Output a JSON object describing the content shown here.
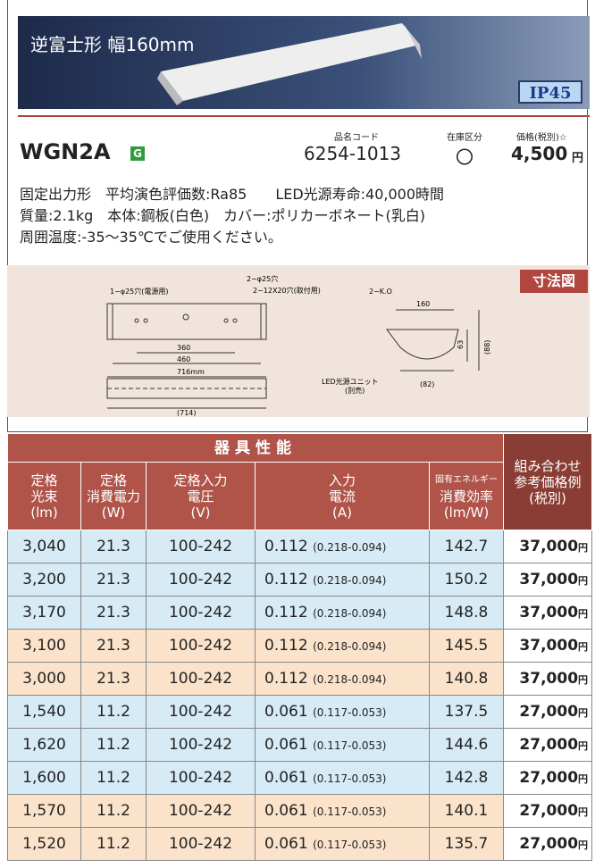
{
  "header": {
    "title": "逆富士形 幅160mm",
    "badge": "IP45"
  },
  "product": {
    "model": "WGN2A",
    "mark": "G",
    "code_label": "品名コード",
    "code": "6254-1013",
    "stock_label": "在庫区分",
    "stock": "〇",
    "price_label": "価格(税別)☆",
    "price": "4,500",
    "price_unit": "円"
  },
  "description": [
    "固定出力形　平均演色評価数:Ra85　　LED光源寿命:40,000時間",
    "質量:2.1kg　本体:鋼板(白色)　カバー:ポリカーボネート(乳白)",
    "周囲温度:-35～35℃でご使用ください。"
  ],
  "diagram": {
    "label": "寸法図",
    "notes": [
      "1−φ25穴(電源用)",
      "2−φ25穴",
      "2−12X20穴(取付用)",
      "360",
      "460",
      "716mm",
      "(714)",
      "2−K.O",
      "160",
      "63",
      "(88)",
      "LED光源ユニット",
      "(別売)",
      "(82)"
    ]
  },
  "table": {
    "group": "器具性能",
    "columns": [
      [
        "定格",
        "光束",
        "(lm)"
      ],
      [
        "定格",
        "消費電力",
        "(W)"
      ],
      [
        "定格入力",
        "電圧",
        "(V)"
      ],
      [
        "入力",
        "電流",
        "(A)"
      ],
      [
        "固有エネルギー",
        "消費効率",
        "(lm/W)"
      ]
    ],
    "price_column": [
      "組み合わせ",
      "参考価格例",
      "(税別)"
    ],
    "rows": [
      {
        "color": "#d6ebf5",
        "cells": [
          "3,040",
          "21.3",
          "100-242",
          "0.112",
          "(0.218-0.094)",
          "142.7",
          "37,000",
          "円"
        ]
      },
      {
        "color": "#d6ebf5",
        "cells": [
          "3,200",
          "21.3",
          "100-242",
          "0.112",
          "(0.218-0.094)",
          "150.2",
          "37,000",
          "円"
        ]
      },
      {
        "color": "#d6ebf5",
        "cells": [
          "3,170",
          "21.3",
          "100-242",
          "0.112",
          "(0.218-0.094)",
          "148.8",
          "37,000",
          "円"
        ]
      },
      {
        "color": "#fbe3cb",
        "cells": [
          "3,100",
          "21.3",
          "100-242",
          "0.112",
          "(0.218-0.094)",
          "145.5",
          "37,000",
          "円"
        ]
      },
      {
        "color": "#fbe3cb",
        "cells": [
          "3,000",
          "21.3",
          "100-242",
          "0.112",
          "(0.218-0.094)",
          "140.8",
          "37,000",
          "円"
        ]
      },
      {
        "color": "#d6ebf5",
        "cells": [
          "1,540",
          "11.2",
          "100-242",
          "0.061",
          "(0.117-0.053)",
          "137.5",
          "27,000",
          "円"
        ]
      },
      {
        "color": "#d6ebf5",
        "cells": [
          "1,620",
          "11.2",
          "100-242",
          "0.061",
          "(0.117-0.053)",
          "144.6",
          "27,000",
          "円"
        ]
      },
      {
        "color": "#d6ebf5",
        "cells": [
          "1,600",
          "11.2",
          "100-242",
          "0.061",
          "(0.117-0.053)",
          "142.8",
          "27,000",
          "円"
        ]
      },
      {
        "color": "#fbe3cb",
        "cells": [
          "1,570",
          "11.2",
          "100-242",
          "0.061",
          "(0.117-0.053)",
          "140.1",
          "27,000",
          "円"
        ]
      },
      {
        "color": "#fbe3cb",
        "cells": [
          "1,520",
          "11.2",
          "100-242",
          "0.061",
          "(0.117-0.053)",
          "135.7",
          "27,000",
          "円"
        ]
      }
    ]
  }
}
